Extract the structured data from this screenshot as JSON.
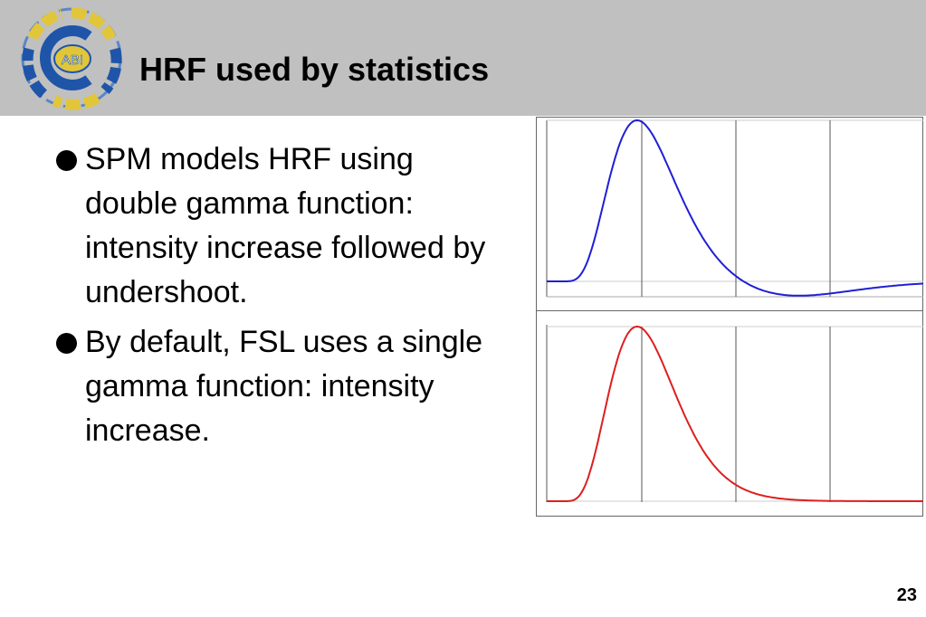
{
  "header": {
    "title": "HRF used by statistics",
    "logo_text": "ABI",
    "logo_colors": {
      "blue": "#1f55a8",
      "gold": "#e1c63a",
      "ring": "#5b86c6"
    }
  },
  "bullets": [
    {
      "text": "SPM models HRF using double gamma function: intensity increase followed by undershoot."
    },
    {
      "text": "By default, FSL uses a single gamma function: intensity increase."
    }
  ],
  "chart_data": [
    {
      "type": "line",
      "title": "",
      "series": [
        {
          "color": "#1f1fd6",
          "shape": "double-gamma"
        }
      ],
      "grid": true
    },
    {
      "type": "line",
      "title": "",
      "series": [
        {
          "color": "#dd1f1f",
          "shape": "single-gamma"
        }
      ],
      "grid": true
    }
  ],
  "footer": {
    "page_number": "23"
  }
}
